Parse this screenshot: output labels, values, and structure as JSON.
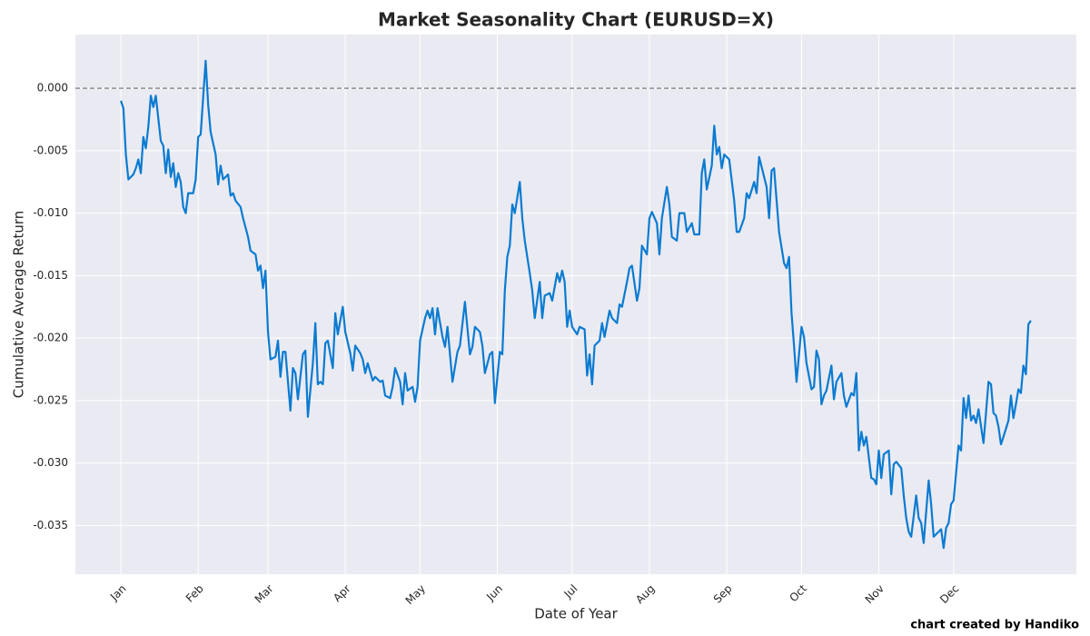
{
  "chart_data": {
    "type": "line",
    "title": "Market Seasonality Chart (EURUSD=X)",
    "xlabel": "Date of Year",
    "ylabel": "Cumulative Average Return",
    "credit": "chart created by Handiko",
    "color": "#0a7bd1",
    "grid": true,
    "hline": 0,
    "xlim": [
      -17.25,
      384.25
    ],
    "ylim": [
      0.0043,
      -0.0389
    ],
    "xticks": [
      {
        "value": 1,
        "label": "Jan"
      },
      {
        "value": 32,
        "label": "Feb"
      },
      {
        "value": 60,
        "label": "Mar"
      },
      {
        "value": 91,
        "label": "Apr"
      },
      {
        "value": 121,
        "label": "May"
      },
      {
        "value": 152,
        "label": "Jun"
      },
      {
        "value": 182,
        "label": "Jul"
      },
      {
        "value": 213,
        "label": "Aug"
      },
      {
        "value": 244,
        "label": "Sep"
      },
      {
        "value": 274,
        "label": "Oct"
      },
      {
        "value": 305,
        "label": "Nov"
      },
      {
        "value": 335,
        "label": "Dec"
      }
    ],
    "yticks": [
      {
        "value": 0,
        "label": "0.000"
      },
      {
        "value": -0.005,
        "label": "-0.005"
      },
      {
        "value": -0.01,
        "label": "-0.010"
      },
      {
        "value": -0.015,
        "label": "-0.015"
      },
      {
        "value": -0.02,
        "label": "-0.020"
      },
      {
        "value": -0.025,
        "label": "-0.025"
      },
      {
        "value": -0.03,
        "label": "-0.030"
      },
      {
        "value": -0.035,
        "label": "-0.035"
      }
    ],
    "x": [
      1,
      2,
      3,
      4,
      6,
      7,
      8,
      9,
      10,
      11,
      12,
      13,
      14,
      15,
      16,
      17,
      18,
      19,
      20,
      21,
      22,
      23,
      24,
      25,
      26,
      27,
      28,
      30,
      31,
      32,
      33,
      35,
      36,
      37,
      39,
      40,
      41,
      42,
      44,
      45,
      46,
      47,
      49,
      50,
      52,
      53,
      55,
      56,
      57,
      58,
      59,
      60,
      61,
      63,
      64,
      65,
      66,
      67,
      69,
      70,
      71,
      72,
      74,
      75,
      76,
      78,
      79,
      80,
      81,
      82,
      83,
      84,
      86,
      87,
      88,
      90,
      91,
      93,
      94,
      95,
      97,
      98,
      99,
      100,
      102,
      103,
      105,
      106,
      107,
      109,
      110,
      111,
      113,
      114,
      115,
      116,
      118,
      119,
      120,
      121,
      123,
      124,
      125,
      126,
      127,
      128,
      130,
      131,
      132,
      134,
      136,
      137,
      139,
      141,
      142,
      143,
      145,
      146,
      147,
      149,
      150,
      151,
      153,
      154,
      155,
      156,
      157,
      158,
      159,
      161,
      162,
      163,
      165,
      166,
      167,
      169,
      170,
      171,
      173,
      174,
      176,
      177,
      178,
      179,
      180,
      181,
      182,
      184,
      185,
      187,
      188,
      189,
      190,
      191,
      193,
      194,
      195,
      197,
      198,
      200,
      201,
      202,
      204,
      205,
      206,
      208,
      209,
      210,
      212,
      213,
      214,
      216,
      217,
      218,
      220,
      221,
      222,
      224,
      225,
      227,
      228,
      230,
      231,
      233,
      234,
      235,
      236,
      238,
      239,
      240,
      241,
      242,
      243,
      245,
      247,
      248,
      249,
      251,
      252,
      253,
      255,
      256,
      257,
      259,
      260,
      261,
      262,
      263,
      265,
      267,
      268,
      269,
      270,
      271,
      272,
      274,
      275,
      276,
      278,
      279,
      280,
      281,
      282,
      283,
      284,
      286,
      287,
      288,
      290,
      291,
      292,
      294,
      295,
      296,
      297,
      298,
      299,
      300,
      302,
      303,
      304,
      305,
      306,
      307,
      309,
      310,
      311,
      312,
      314,
      315,
      316,
      317,
      318,
      320,
      321,
      322,
      323,
      325,
      326,
      327,
      328,
      330,
      331,
      332,
      333,
      334,
      335,
      337,
      338,
      339,
      340,
      341,
      342,
      343,
      344,
      345,
      347,
      348,
      349,
      350,
      351,
      352,
      353,
      354,
      355,
      357,
      358,
      359,
      360,
      361,
      362,
      363,
      364,
      365,
      366
    ],
    "values": [
      -0.001,
      -0.0016,
      -0.0053,
      -0.0073,
      -0.0069,
      -0.0064,
      -0.0057,
      -0.0068,
      -0.0039,
      -0.0048,
      -0.0031,
      -0.0006,
      -0.0015,
      -0.0006,
      -0.0024,
      -0.0042,
      -0.0046,
      -0.0068,
      -0.0049,
      -0.0071,
      -0.006,
      -0.0079,
      -0.0068,
      -0.0075,
      -0.0095,
      -0.01,
      -0.0084,
      -0.0084,
      -0.0073,
      -0.0039,
      -0.0037,
      0.0022,
      -0.0013,
      -0.0035,
      -0.0053,
      -0.0077,
      -0.0062,
      -0.0073,
      -0.0069,
      -0.0086,
      -0.0084,
      -0.009,
      -0.0095,
      -0.0104,
      -0.0119,
      -0.013,
      -0.0133,
      -0.0146,
      -0.0142,
      -0.016,
      -0.0146,
      -0.0195,
      -0.0217,
      -0.0215,
      -0.0202,
      -0.0231,
      -0.0211,
      -0.0211,
      -0.0258,
      -0.0224,
      -0.0228,
      -0.0249,
      -0.0213,
      -0.021,
      -0.0263,
      -0.022,
      -0.0188,
      -0.0237,
      -0.0235,
      -0.0237,
      -0.0204,
      -0.0202,
      -0.0224,
      -0.018,
      -0.0197,
      -0.0175,
      -0.0195,
      -0.0212,
      -0.0226,
      -0.0206,
      -0.0212,
      -0.0217,
      -0.0228,
      -0.022,
      -0.0234,
      -0.0231,
      -0.0235,
      -0.0234,
      -0.0246,
      -0.0248,
      -0.0239,
      -0.0224,
      -0.0235,
      -0.0253,
      -0.0228,
      -0.0242,
      -0.0239,
      -0.0251,
      -0.0239,
      -0.0202,
      -0.0184,
      -0.0178,
      -0.0184,
      -0.0176,
      -0.0197,
      -0.0176,
      -0.0199,
      -0.0207,
      -0.0191,
      -0.0235,
      -0.0211,
      -0.0206,
      -0.0171,
      -0.0213,
      -0.0207,
      -0.0191,
      -0.0195,
      -0.0206,
      -0.0228,
      -0.0213,
      -0.0211,
      -0.0252,
      -0.0211,
      -0.0213,
      -0.0162,
      -0.0135,
      -0.0126,
      -0.0093,
      -0.01,
      -0.0075,
      -0.0104,
      -0.0122,
      -0.0148,
      -0.0162,
      -0.0184,
      -0.0155,
      -0.0184,
      -0.0166,
      -0.0164,
      -0.017,
      -0.0148,
      -0.0155,
      -0.0146,
      -0.0155,
      -0.0191,
      -0.0178,
      -0.0191,
      -0.0197,
      -0.0191,
      -0.0193,
      -0.023,
      -0.0213,
      -0.0237,
      -0.0206,
      -0.0202,
      -0.0188,
      -0.0199,
      -0.0178,
      -0.0184,
      -0.0188,
      -0.0173,
      -0.0175,
      -0.0155,
      -0.0144,
      -0.0142,
      -0.017,
      -0.016,
      -0.0126,
      -0.0133,
      -0.0104,
      -0.0099,
      -0.0108,
      -0.0133,
      -0.0104,
      -0.0079,
      -0.0093,
      -0.0119,
      -0.0122,
      -0.01,
      -0.01,
      -0.0115,
      -0.0108,
      -0.0117,
      -0.0117,
      -0.0068,
      -0.0057,
      -0.0081,
      -0.0062,
      -0.003,
      -0.0053,
      -0.0047,
      -0.0064,
      -0.0053,
      -0.0057,
      -0.009,
      -0.0115,
      -0.0115,
      -0.0104,
      -0.0084,
      -0.0088,
      -0.0075,
      -0.0084,
      -0.0055,
      -0.0071,
      -0.0079,
      -0.0104,
      -0.0066,
      -0.0064,
      -0.0115,
      -0.014,
      -0.0144,
      -0.0135,
      -0.018,
      -0.0206,
      -0.0235,
      -0.0191,
      -0.0199,
      -0.022,
      -0.0241,
      -0.0239,
      -0.021,
      -0.0217,
      -0.0253,
      -0.0246,
      -0.0242,
      -0.0222,
      -0.0249,
      -0.0235,
      -0.0228,
      -0.0246,
      -0.0255,
      -0.0244,
      -0.0246,
      -0.0228,
      -0.029,
      -0.0275,
      -0.0286,
      -0.0279,
      -0.0312,
      -0.0313,
      -0.0317,
      -0.029,
      -0.0312,
      -0.0293,
      -0.029,
      -0.0325,
      -0.0301,
      -0.0299,
      -0.0304,
      -0.0326,
      -0.0344,
      -0.0355,
      -0.0359,
      -0.0326,
      -0.0344,
      -0.0348,
      -0.0364,
      -0.0314,
      -0.0333,
      -0.0359,
      -0.0357,
      -0.0353,
      -0.0368,
      -0.0352,
      -0.0348,
      -0.0333,
      -0.033,
      -0.0286,
      -0.029,
      -0.0248,
      -0.0264,
      -0.0246,
      -0.0266,
      -0.0262,
      -0.0268,
      -0.0257,
      -0.0284,
      -0.026,
      -0.0235,
      -0.0237,
      -0.026,
      -0.0262,
      -0.0271,
      -0.0285,
      -0.0279,
      -0.0266,
      -0.0246,
      -0.0264,
      -0.0253,
      -0.0241,
      -0.0244,
      -0.0222,
      -0.0229,
      -0.0189,
      -0.0186
    ]
  }
}
